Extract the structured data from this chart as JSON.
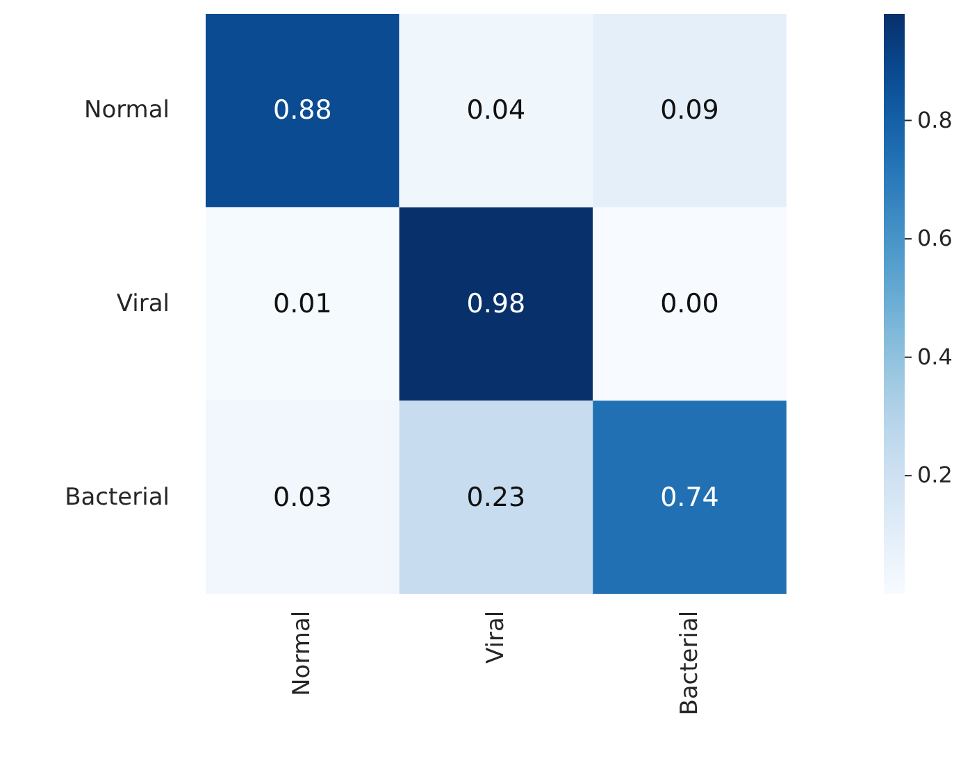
{
  "chart_data": {
    "type": "heatmap",
    "categories": [
      "Normal",
      "Viral",
      "Bacterial"
    ],
    "y_categories": [
      "Normal",
      "Viral",
      "Bacterial"
    ],
    "cells": [
      [
        0.88,
        0.04,
        0.09
      ],
      [
        0.01,
        0.98,
        0.0
      ],
      [
        0.03,
        0.23,
        0.74
      ]
    ],
    "cell_labels": [
      [
        "0.88",
        "0.04",
        "0.09"
      ],
      [
        "0.01",
        "0.98",
        "0.00"
      ],
      [
        "0.03",
        "0.23",
        "0.74"
      ]
    ],
    "clim": [
      0,
      0.98
    ],
    "cticks": [
      0.2,
      0.4,
      0.6,
      0.8
    ]
  }
}
